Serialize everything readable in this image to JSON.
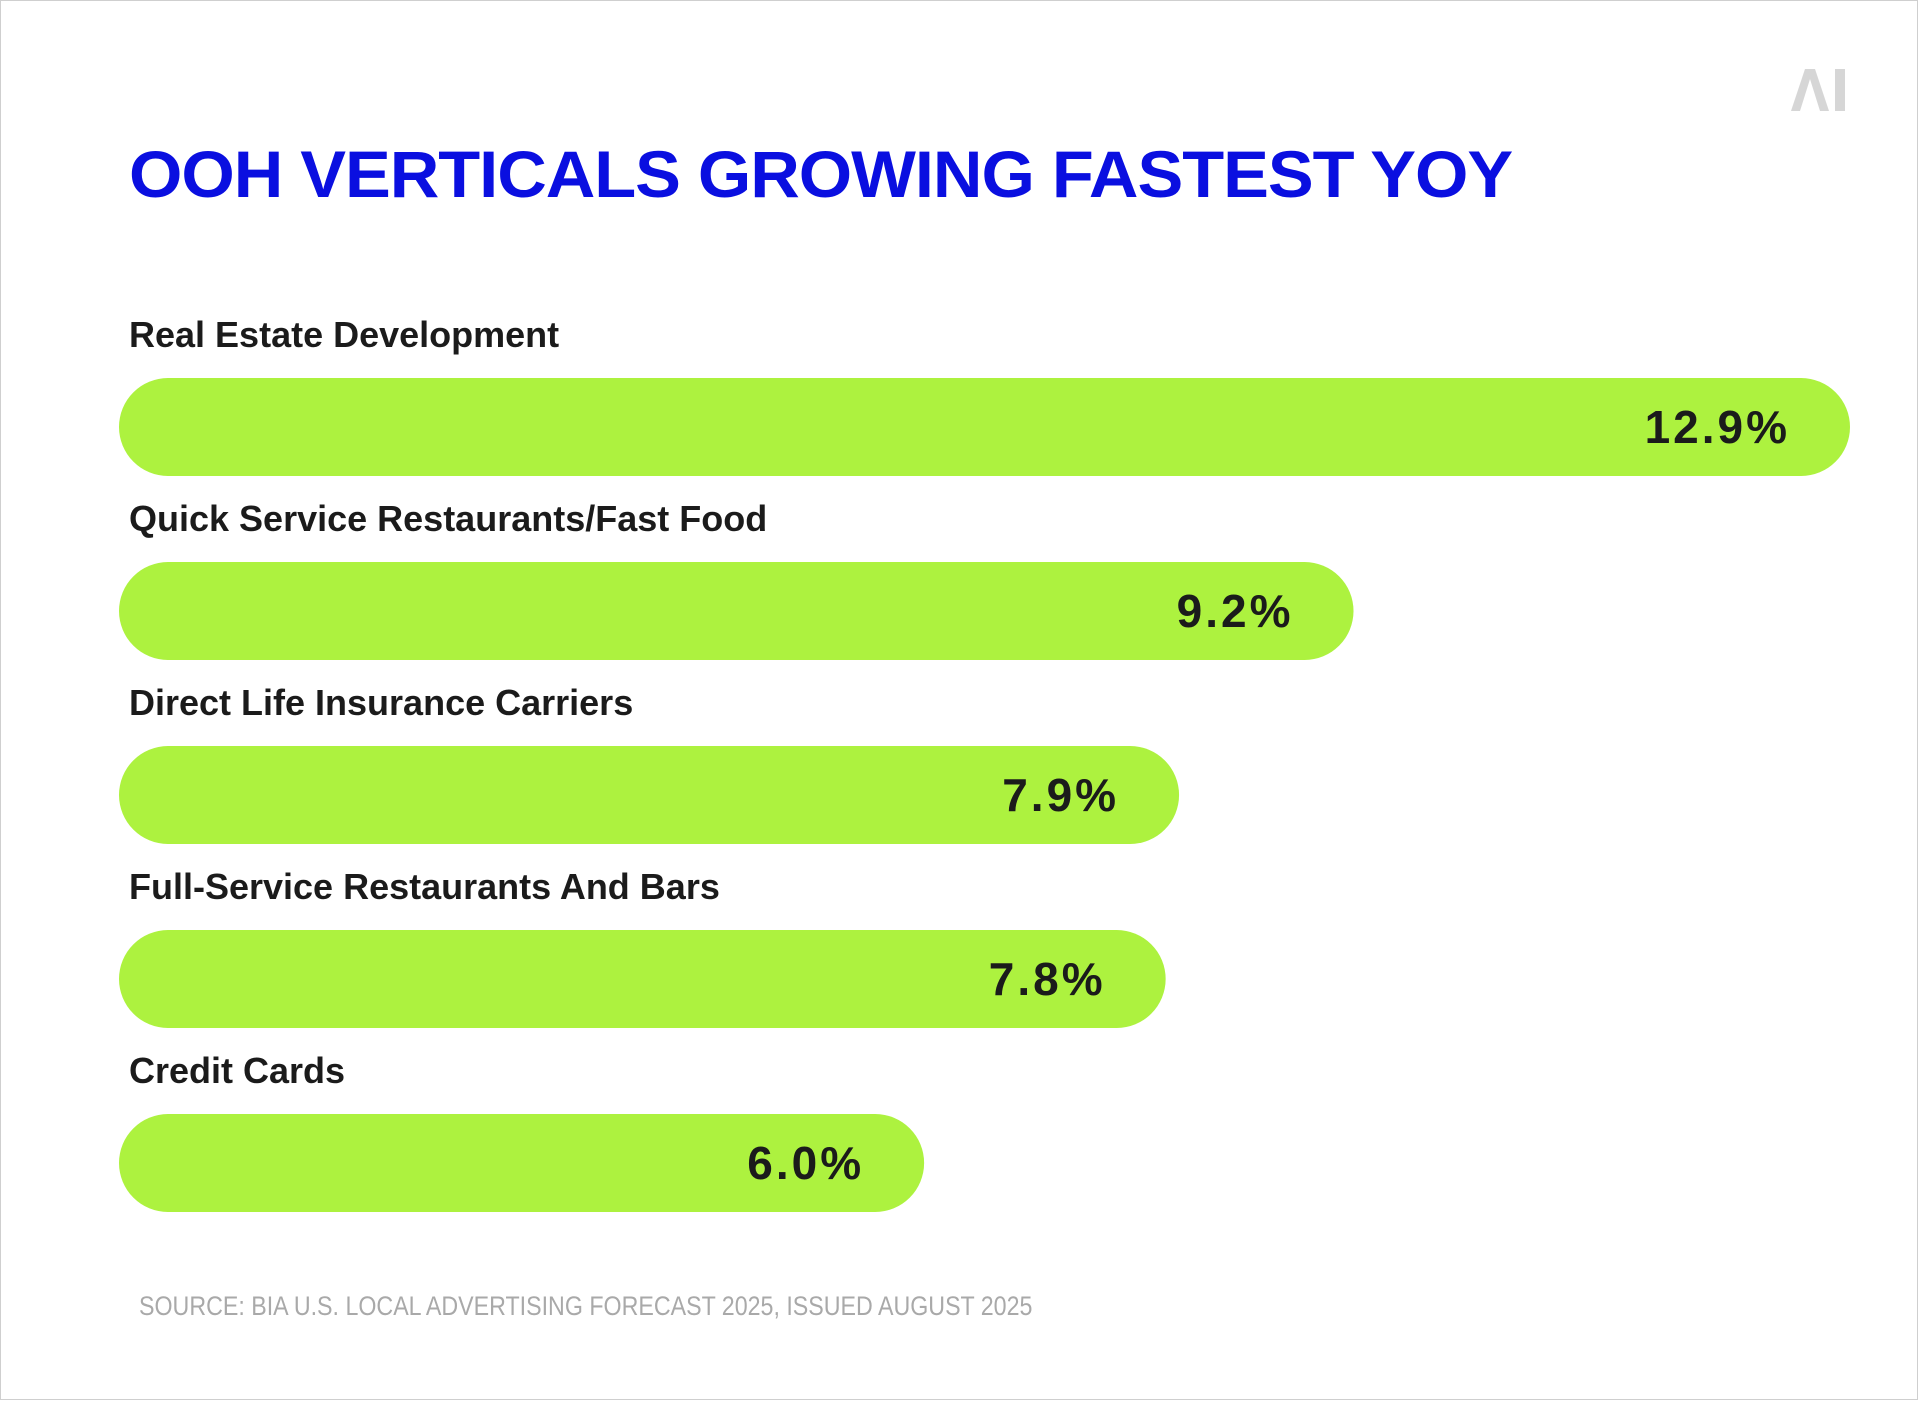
{
  "logo_text": "AI",
  "colors": {
    "title": "#0a0fe0",
    "bar": "#adf23f",
    "label": "#1b1b1b",
    "source": "#a9a9a9",
    "logo": "#d6d6d6"
  },
  "chart_data": {
    "type": "bar",
    "orientation": "horizontal",
    "title": "OOH VERTICALS GROWING FASTEST YOY",
    "categories": [
      "Real Estate Development",
      "Quick Service Restaurants/Fast Food",
      "Direct Life Insurance Carriers",
      "Full-Service Restaurants And Bars",
      "Credit Cards"
    ],
    "values": [
      12.9,
      9.2,
      7.9,
      7.8,
      6.0
    ],
    "value_labels": [
      "12.9%",
      "9.2%",
      "7.9%",
      "7.8%",
      "6.0%"
    ],
    "xlim": [
      0,
      12.9
    ],
    "grid": false,
    "legend": "none"
  },
  "source": "SOURCE: BIA U.S. LOCAL ADVERTISING FORECAST 2025, ISSUED AUGUST 2025"
}
